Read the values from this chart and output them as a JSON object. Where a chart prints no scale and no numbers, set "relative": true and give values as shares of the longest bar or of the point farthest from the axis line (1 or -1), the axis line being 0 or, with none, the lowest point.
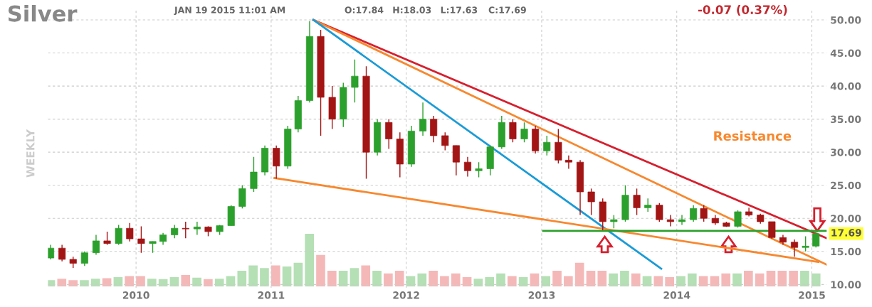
{
  "chart_data": [
    {
      "type": "candlestick",
      "title": "Silver",
      "ylabel": "WEEKLY",
      "x": [
        "2009-05-15",
        "2009-06-15",
        "2009-07-15",
        "2009-08-15",
        "2009-09-15",
        "2009-10-15",
        "2009-11-15",
        "2009-12-15",
        "2010-01-15",
        "2010-02-15",
        "2010-03-15",
        "2010-04-15",
        "2010-05-15",
        "2010-06-15",
        "2010-07-15",
        "2010-08-15",
        "2010-09-15",
        "2010-10-15",
        "2010-11-15",
        "2010-12-15",
        "2011-01-15",
        "2011-02-15",
        "2011-03-15",
        "2011-04-15",
        "2011-05-15",
        "2011-06-15",
        "2011-07-15",
        "2011-08-15",
        "2011-09-15",
        "2011-10-15",
        "2011-11-15",
        "2011-12-15",
        "2012-01-15",
        "2012-02-15",
        "2012-03-15",
        "2012-04-15",
        "2012-05-15",
        "2012-06-15",
        "2012-07-15",
        "2012-08-15",
        "2012-09-15",
        "2012-10-15",
        "2012-11-15",
        "2012-12-15",
        "2013-01-15",
        "2013-02-15",
        "2013-03-15",
        "2013-04-15",
        "2013-05-15",
        "2013-06-15",
        "2013-07-15",
        "2013-08-15",
        "2013-09-15",
        "2013-10-15",
        "2013-11-15",
        "2013-12-15",
        "2014-01-15",
        "2014-02-15",
        "2014-03-15",
        "2014-04-15",
        "2014-05-15",
        "2014-06-15",
        "2014-07-15",
        "2014-08-15",
        "2014-09-15",
        "2014-10-15",
        "2014-11-15",
        "2014-12-15",
        "2015-01-12"
      ],
      "ohlc": [
        [
          14.0,
          16.0,
          13.8,
          15.5
        ],
        [
          15.5,
          16.0,
          13.5,
          13.8
        ],
        [
          13.8,
          14.2,
          12.5,
          13.2
        ],
        [
          13.2,
          15.0,
          12.8,
          14.8
        ],
        [
          14.8,
          17.5,
          14.5,
          16.6
        ],
        [
          16.6,
          18.0,
          16.0,
          16.2
        ],
        [
          16.2,
          19.0,
          16.0,
          18.5
        ],
        [
          18.5,
          19.3,
          16.5,
          16.9
        ],
        [
          16.9,
          18.8,
          14.8,
          16.2
        ],
        [
          16.2,
          16.5,
          14.8,
          16.5
        ],
        [
          16.5,
          17.8,
          16.0,
          17.5
        ],
        [
          17.5,
          19.0,
          17.0,
          18.5
        ],
        [
          18.5,
          19.5,
          17.0,
          18.4
        ],
        [
          18.4,
          19.5,
          17.5,
          18.7
        ],
        [
          18.7,
          18.8,
          17.3,
          18.0
        ],
        [
          18.0,
          19.0,
          17.5,
          18.9
        ],
        [
          18.9,
          22.0,
          18.9,
          21.8
        ],
        [
          21.8,
          25.0,
          21.5,
          24.5
        ],
        [
          24.5,
          29.3,
          24.0,
          27.0
        ],
        [
          27.0,
          31.0,
          26.5,
          30.6
        ],
        [
          30.6,
          31.0,
          26.0,
          27.9
        ],
        [
          27.9,
          34.0,
          27.5,
          33.5
        ],
        [
          33.5,
          38.5,
          33.0,
          37.8
        ],
        [
          37.8,
          49.8,
          37.5,
          47.5
        ],
        [
          47.5,
          48.5,
          32.5,
          38.3
        ],
        [
          38.3,
          40.0,
          33.5,
          35.0
        ],
        [
          35.0,
          40.5,
          33.8,
          39.8
        ],
        [
          39.8,
          44.0,
          37.5,
          41.5
        ],
        [
          41.5,
          43.0,
          26.0,
          30.0
        ],
        [
          30.0,
          35.0,
          29.5,
          34.5
        ],
        [
          34.5,
          35.0,
          30.5,
          32.0
        ],
        [
          32.0,
          33.0,
          26.2,
          28.2
        ],
        [
          28.2,
          34.0,
          27.8,
          33.2
        ],
        [
          33.2,
          37.5,
          32.5,
          35.0
        ],
        [
          35.0,
          35.5,
          31.5,
          32.5
        ],
        [
          32.5,
          33.0,
          30.3,
          31.0
        ],
        [
          31.0,
          31.0,
          26.5,
          28.5
        ],
        [
          28.5,
          29.3,
          26.3,
          27.2
        ],
        [
          27.2,
          28.5,
          26.2,
          27.5
        ],
        [
          27.5,
          31.0,
          26.5,
          30.8
        ],
        [
          30.8,
          35.5,
          30.5,
          34.5
        ],
        [
          34.5,
          35.0,
          31.5,
          32.0
        ],
        [
          32.0,
          34.5,
          31.5,
          33.5
        ],
        [
          33.5,
          34.0,
          29.8,
          30.2
        ],
        [
          30.2,
          32.5,
          29.5,
          31.5
        ],
        [
          31.5,
          33.5,
          28.3,
          28.8
        ],
        [
          28.8,
          29.5,
          27.5,
          28.5
        ],
        [
          28.5,
          28.8,
          20.5,
          24.0
        ],
        [
          24.0,
          24.5,
          20.5,
          22.5
        ],
        [
          22.5,
          23.0,
          18.2,
          19.5
        ],
        [
          19.5,
          20.5,
          18.5,
          19.8
        ],
        [
          19.8,
          25.0,
          19.5,
          23.5
        ],
        [
          23.5,
          24.5,
          20.5,
          21.6
        ],
        [
          21.6,
          23.0,
          21.0,
          22.0
        ],
        [
          22.0,
          22.3,
          19.5,
          19.8
        ],
        [
          19.8,
          20.5,
          18.8,
          19.5
        ],
        [
          19.5,
          20.5,
          19.0,
          19.8
        ],
        [
          19.8,
          22.0,
          19.5,
          21.5
        ],
        [
          21.5,
          22.0,
          19.5,
          20.0
        ],
        [
          20.0,
          20.5,
          19.0,
          19.3
        ],
        [
          19.3,
          19.5,
          18.7,
          18.8
        ],
        [
          18.8,
          21.2,
          18.6,
          21.0
        ],
        [
          21.0,
          21.6,
          20.3,
          20.5
        ],
        [
          20.5,
          20.7,
          19.2,
          19.5
        ],
        [
          19.5,
          19.5,
          16.9,
          17.1
        ],
        [
          17.1,
          17.5,
          16.0,
          16.4
        ],
        [
          16.4,
          16.8,
          14.2,
          15.6
        ],
        [
          15.6,
          17.3,
          15.0,
          15.8
        ],
        [
          15.8,
          18.1,
          15.6,
          17.7
        ]
      ],
      "colors": [
        "#2ca02c",
        "#a31515",
        "#a31515",
        "#2ca02c",
        "#2ca02c",
        "#a31515",
        "#2ca02c",
        "#a31515",
        "#a31515",
        "#2ca02c",
        "#2ca02c",
        "#2ca02c",
        "#a31515",
        "#2ca02c",
        "#a31515",
        "#2ca02c",
        "#2ca02c",
        "#2ca02c",
        "#2ca02c",
        "#2ca02c",
        "#a31515",
        "#2ca02c",
        "#2ca02c",
        "#2ca02c",
        "#a31515",
        "#a31515",
        "#2ca02c",
        "#2ca02c",
        "#a31515",
        "#2ca02c",
        "#a31515",
        "#a31515",
        "#2ca02c",
        "#2ca02c",
        "#a31515",
        "#a31515",
        "#a31515",
        "#a31515",
        "#2ca02c",
        "#2ca02c",
        "#2ca02c",
        "#a31515",
        "#2ca02c",
        "#a31515",
        "#2ca02c",
        "#a31515",
        "#a31515",
        "#a31515",
        "#a31515",
        "#a31515",
        "#2ca02c",
        "#2ca02c",
        "#a31515",
        "#2ca02c",
        "#a31515",
        "#a31515",
        "#2ca02c",
        "#2ca02c",
        "#a31515",
        "#a31515",
        "#a31515",
        "#2ca02c",
        "#a31515",
        "#a31515",
        "#a31515",
        "#a31515",
        "#a31515",
        "#2ca02c",
        "#2ca02c"
      ],
      "series": [
        {
          "type": "line",
          "color": "#d61f2e",
          "x": [
            "2011-04-25",
            "2015-02-10"
          ],
          "values": [
            50.0,
            17.0
          ]
        },
        {
          "type": "line",
          "color": "#f7882f",
          "x": [
            "2011-04-25",
            "2015-02-10"
          ],
          "values": [
            50.0,
            13.0
          ]
        },
        {
          "type": "line",
          "color": "#1a9bd7",
          "x": [
            "2011-04-25",
            "2013-11-20"
          ],
          "values": [
            50.0,
            12.4
          ]
        },
        {
          "type": "line",
          "color": "#f7882f",
          "x": [
            "2011-01-10",
            "2015-01-19"
          ],
          "values": [
            26.1,
            13.4
          ]
        },
        {
          "type": "line",
          "color": "#2ca02c",
          "x": [
            "2013-01-05",
            "2015-02-10"
          ],
          "values": [
            18.1,
            18.1
          ]
        }
      ],
      "xlim": [
        "2009-05-08",
        "2015-02-10"
      ],
      "xticks": [
        {
          "value": "2010-01-01",
          "label": "2010"
        },
        {
          "value": "2011-01-01",
          "label": "2011"
        },
        {
          "value": "2012-01-01",
          "label": "2012"
        },
        {
          "value": "2013-01-01",
          "label": "2013"
        },
        {
          "value": "2014-01-01",
          "label": "2014"
        },
        {
          "value": "2015-01-01",
          "label": "2015"
        }
      ],
      "ylim": [
        9.5,
        51.5
      ],
      "yticks": [
        {
          "value": 10,
          "label": "10.00"
        },
        {
          "value": 15,
          "label": "15.00"
        },
        {
          "value": 20,
          "label": "20.00"
        },
        {
          "value": 25,
          "label": "25.00"
        },
        {
          "value": 30,
          "label": "30.00"
        },
        {
          "value": 35,
          "label": "35.00"
        },
        {
          "value": 40,
          "label": "40.00"
        },
        {
          "value": 45,
          "label": "45.00"
        },
        {
          "value": 50,
          "label": "50.00"
        }
      ],
      "grid": true,
      "annotations": [
        "JAN 19 2015 11:01 AM",
        "O:17.84",
        "H:18.03",
        "L:17.63",
        "C:17.69",
        "-0.07 (0.37%)",
        "Resistance",
        "17.69"
      ]
    },
    {
      "type": "bar",
      "relative": true,
      "categories": [
        null,
        null,
        null,
        null,
        null,
        null,
        null,
        null,
        null,
        null,
        null,
        null,
        null,
        null,
        null,
        null,
        null,
        null,
        null,
        null,
        null,
        null,
        null,
        null,
        null,
        null,
        null,
        null,
        null,
        null,
        null,
        null,
        null,
        null,
        null,
        null,
        null,
        null,
        null,
        null,
        null,
        null,
        null,
        null,
        null,
        null,
        null,
        null,
        null,
        null,
        null,
        null,
        null,
        null,
        null,
        null,
        null,
        null,
        null,
        null,
        null,
        null,
        null,
        null,
        null,
        null,
        null,
        null,
        null
      ],
      "values": [
        0.12,
        0.15,
        0.12,
        0.12,
        0.15,
        0.16,
        0.18,
        0.2,
        0.2,
        0.15,
        0.14,
        0.18,
        0.22,
        0.17,
        0.14,
        0.15,
        0.2,
        0.3,
        0.4,
        0.35,
        0.4,
        0.38,
        0.45,
        1.0,
        0.6,
        0.3,
        0.3,
        0.35,
        0.4,
        0.3,
        0.25,
        0.3,
        0.2,
        0.25,
        0.3,
        0.2,
        0.25,
        0.18,
        0.15,
        0.18,
        0.25,
        0.2,
        0.18,
        0.25,
        0.2,
        0.3,
        0.2,
        0.45,
        0.3,
        0.3,
        0.25,
        0.3,
        0.25,
        0.2,
        0.2,
        0.18,
        0.2,
        0.25,
        0.2,
        0.2,
        0.25,
        0.25,
        0.3,
        0.25,
        0.3,
        0.3,
        0.3,
        0.3,
        0.25
      ],
      "colors": [
        "#b5dfb5",
        "#f5b8b8",
        "#f5b8b8",
        "#b5dfb5",
        "#b5dfb5",
        "#f5b8b8",
        "#b5dfb5",
        "#f5b8b8",
        "#f5b8b8",
        "#b5dfb5",
        "#b5dfb5",
        "#b5dfb5",
        "#f5b8b8",
        "#b5dfb5",
        "#f5b8b8",
        "#b5dfb5",
        "#b5dfb5",
        "#b5dfb5",
        "#b5dfb5",
        "#b5dfb5",
        "#f5b8b8",
        "#b5dfb5",
        "#b5dfb5",
        "#b5dfb5",
        "#f5b8b8",
        "#f5b8b8",
        "#b5dfb5",
        "#b5dfb5",
        "#f5b8b8",
        "#b5dfb5",
        "#f5b8b8",
        "#f5b8b8",
        "#b5dfb5",
        "#b5dfb5",
        "#f5b8b8",
        "#f5b8b8",
        "#f5b8b8",
        "#f5b8b8",
        "#b5dfb5",
        "#b5dfb5",
        "#b5dfb5",
        "#f5b8b8",
        "#b5dfb5",
        "#f5b8b8",
        "#b5dfb5",
        "#f5b8b8",
        "#f5b8b8",
        "#f5b8b8",
        "#f5b8b8",
        "#f5b8b8",
        "#b5dfb5",
        "#b5dfb5",
        "#f5b8b8",
        "#b5dfb5",
        "#f5b8b8",
        "#f5b8b8",
        "#b5dfb5",
        "#b5dfb5",
        "#f5b8b8",
        "#f5b8b8",
        "#f5b8b8",
        "#b5dfb5",
        "#f5b8b8",
        "#f5b8b8",
        "#f5b8b8",
        "#f5b8b8",
        "#f5b8b8",
        "#b5dfb5",
        "#b5dfb5"
      ]
    }
  ]
}
